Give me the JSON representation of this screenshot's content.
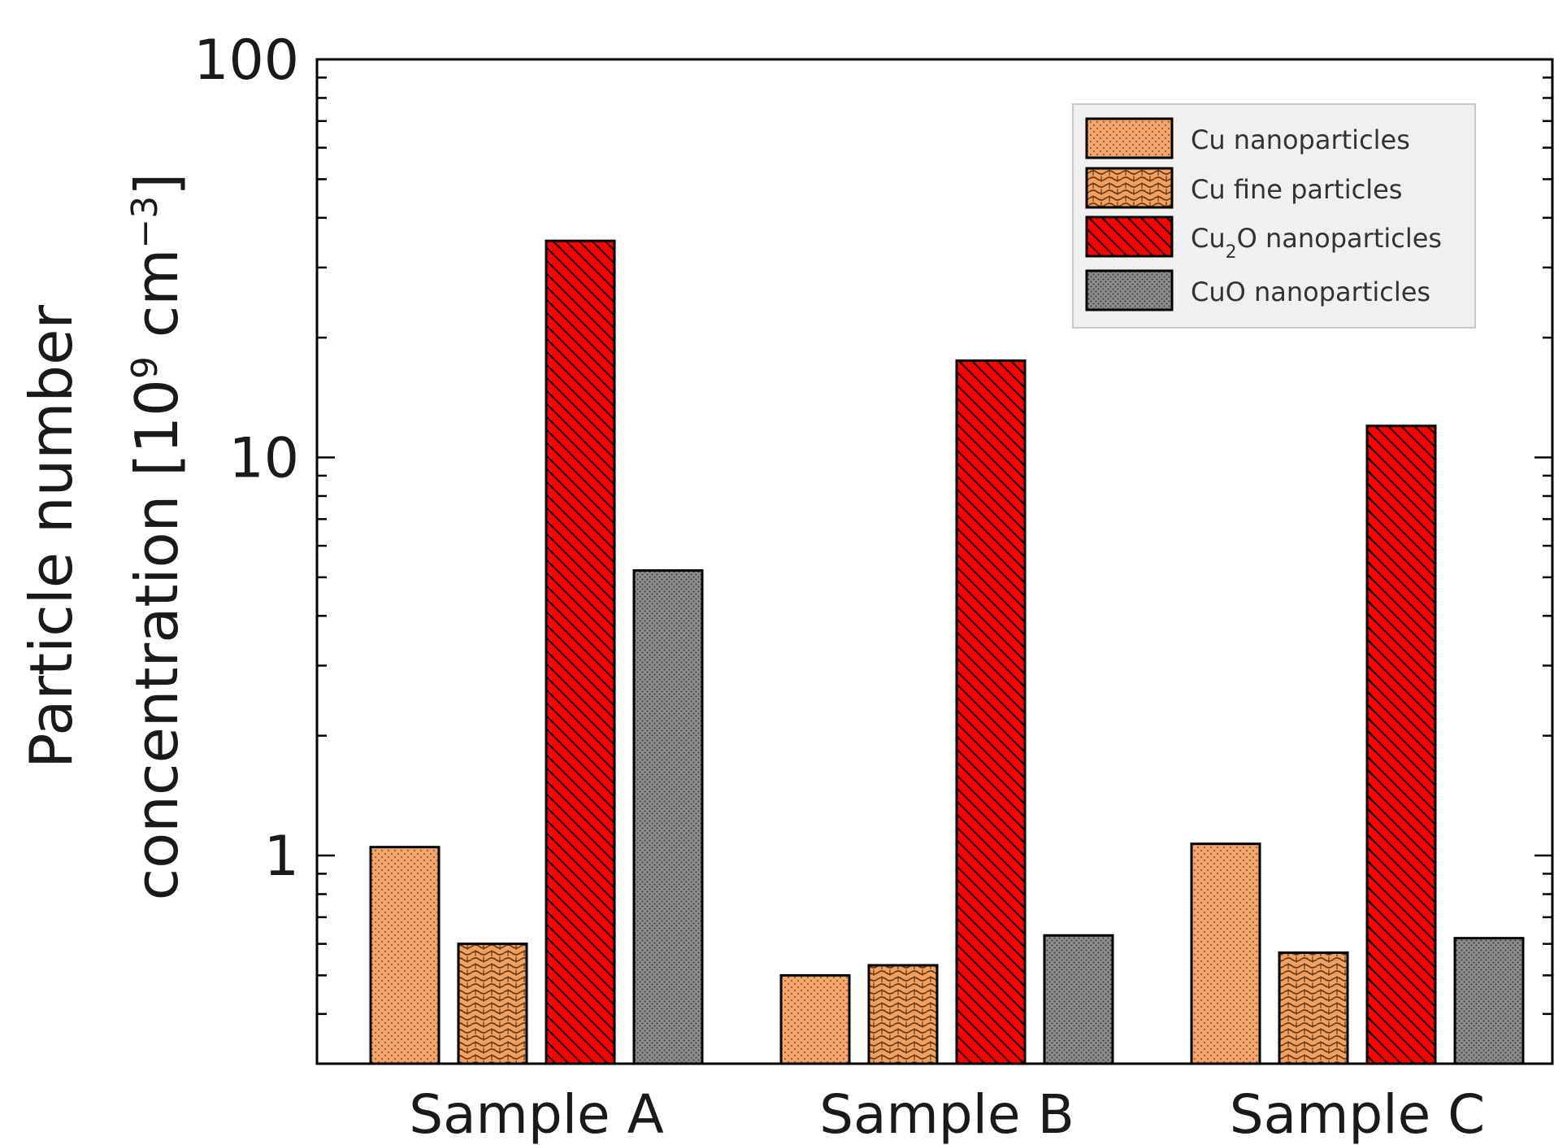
{
  "chart_data": {
    "type": "bar",
    "title": "",
    "xlabel": "",
    "ylabel": {
      "line1": "Particle number",
      "line2_prefix": "concentration [10",
      "line2_exp1": "9",
      "line2_mid": " cm",
      "line2_exp2": "−3",
      "line2_suffix": "]"
    },
    "yscale": "log",
    "ylim": [
      0.3,
      100
    ],
    "yticks": [
      {
        "value": 1,
        "label": "1"
      },
      {
        "value": 10,
        "label": "10"
      },
      {
        "value": 100,
        "label": "100"
      }
    ],
    "categories": [
      "Sample A",
      "Sample B",
      "Sample C"
    ],
    "series": [
      {
        "name": "Cu nanoparticles",
        "legend": {
          "main": "Cu nanoparticles"
        },
        "color": "#f5a66c",
        "pattern": "dots",
        "values": [
          1.05,
          0.5,
          1.07
        ]
      },
      {
        "name": "Cu fine particles",
        "legend": {
          "main": "Cu fine particles"
        },
        "color": "#f0a060",
        "pattern": "weave",
        "values": [
          0.6,
          0.53,
          0.57
        ]
      },
      {
        "name": "Cu2O nanoparticles",
        "legend": {
          "pre": "Cu",
          "sub": "2",
          "post": "O nanoparticles"
        },
        "color": "#ff0000",
        "pattern": "diagonal",
        "values": [
          35,
          17.5,
          12
        ]
      },
      {
        "name": "CuO nanoparticles",
        "legend": {
          "main": "CuO nanoparticles"
        },
        "color": "#8c8c8c",
        "pattern": "fine-dots",
        "values": [
          5.2,
          0.63,
          0.62
        ]
      }
    ],
    "legend_position": "top-right",
    "grid": false
  }
}
